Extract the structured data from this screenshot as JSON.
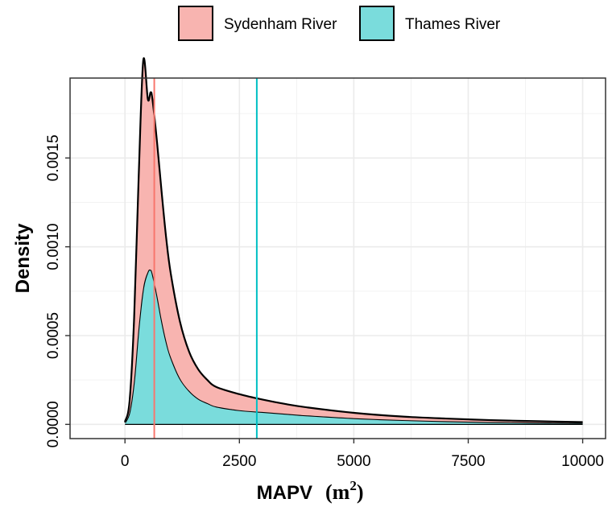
{
  "chart_data": {
    "type": "area",
    "xlabel": "MAPV",
    "xlabel_unit": "(m",
    "xlabel_unit_sup": "2",
    "xlabel_unit_close": ")",
    "ylabel": "Density",
    "xlim": [
      -1200,
      10500
    ],
    "ylim": [
      -8e-05,
      0.00195
    ],
    "x_ticks": [
      0,
      2500,
      5000,
      7500,
      10000
    ],
    "x_tick_labels": [
      "0",
      "2500",
      "5000",
      "7500",
      "10000"
    ],
    "y_ticks": [
      0,
      0.0005,
      0.001,
      0.0015
    ],
    "y_tick_labels": [
      "0.0000",
      "0.0005",
      "0.0010",
      "0.0015"
    ],
    "grid": true,
    "legend": "top",
    "stacked": true,
    "x": [
      0,
      100,
      200,
      300,
      400,
      500,
      560,
      600,
      700,
      800,
      900,
      1000,
      1200,
      1400,
      1600,
      1800,
      2000,
      2500,
      3000,
      3500,
      4000,
      5000,
      6000,
      7000,
      8000,
      9000,
      10000
    ],
    "series": [
      {
        "name": "Thames River",
        "color": "#7ADCDC",
        "values": [
          1e-05,
          7e-05,
          0.00025,
          0.00055,
          0.00077,
          0.00086,
          0.00087,
          0.00085,
          0.00073,
          0.00059,
          0.00047,
          0.00038,
          0.00026,
          0.00019,
          0.000145,
          0.00012,
          0.0001,
          8e-05,
          7e-05,
          6e-05,
          5e-05,
          3.5e-05,
          2.5e-05,
          1.8e-05,
          1.3e-05,
          1e-05,
          8e-06
        ]
      },
      {
        "name": "Sydenham River",
        "color": "#F8B4B0",
        "values": [
          5e-06,
          6e-05,
          0.00035,
          0.00085,
          0.00128,
          0.00097,
          0.001,
          0.00098,
          0.00086,
          0.00072,
          0.00058,
          0.00047,
          0.00032,
          0.00022,
          0.000165,
          0.00013,
          0.00011,
          9e-05,
          7e-05,
          5.5e-05,
          4.5e-05,
          3e-05,
          2e-05,
          1.5e-05,
          1.1e-05,
          8e-06,
          5e-06
        ]
      }
    ],
    "vlines": [
      {
        "name": "Sydenham River",
        "x": 640,
        "color": "#F8766D"
      },
      {
        "name": "Thames River",
        "x": 2880,
        "color": "#00BFC4"
      }
    ]
  }
}
